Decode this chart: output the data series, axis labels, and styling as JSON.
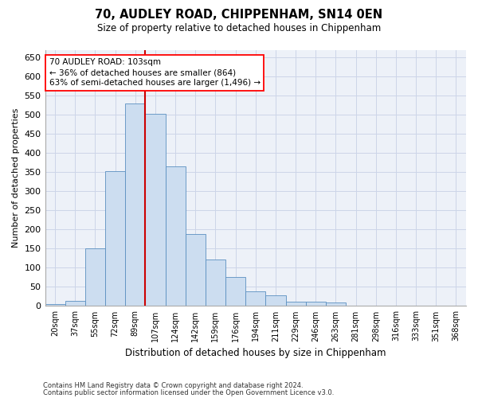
{
  "title_line1": "70, AUDLEY ROAD, CHIPPENHAM, SN14 0EN",
  "title_line2": "Size of property relative to detached houses in Chippenham",
  "xlabel": "Distribution of detached houses by size in Chippenham",
  "ylabel": "Number of detached properties",
  "categories": [
    "20sqm",
    "37sqm",
    "55sqm",
    "72sqm",
    "89sqm",
    "107sqm",
    "124sqm",
    "142sqm",
    "159sqm",
    "176sqm",
    "194sqm",
    "211sqm",
    "229sqm",
    "246sqm",
    "263sqm",
    "281sqm",
    "298sqm",
    "316sqm",
    "333sqm",
    "351sqm",
    "368sqm"
  ],
  "bar_values": [
    5,
    13,
    150,
    353,
    530,
    502,
    365,
    188,
    122,
    75,
    38,
    27,
    12,
    12,
    10,
    0,
    0,
    0,
    0,
    0,
    0
  ],
  "bar_color": "#ccddf0",
  "bar_edge_color": "#5a8fc0",
  "vline_x_index": 5,
  "vline_color": "#cc0000",
  "annotation_text_line1": "70 AUDLEY ROAD: 103sqm",
  "annotation_text_line2": "← 36% of detached houses are smaller (864)",
  "annotation_text_line3": "63% of semi-detached houses are larger (1,496) →",
  "ylim_max": 670,
  "yticks": [
    0,
    50,
    100,
    150,
    200,
    250,
    300,
    350,
    400,
    450,
    500,
    550,
    600,
    650
  ],
  "grid_color": "#ccd5e8",
  "bg_color": "#edf1f8",
  "footnote1": "Contains HM Land Registry data © Crown copyright and database right 2024.",
  "footnote2": "Contains public sector information licensed under the Open Government Licence v3.0."
}
